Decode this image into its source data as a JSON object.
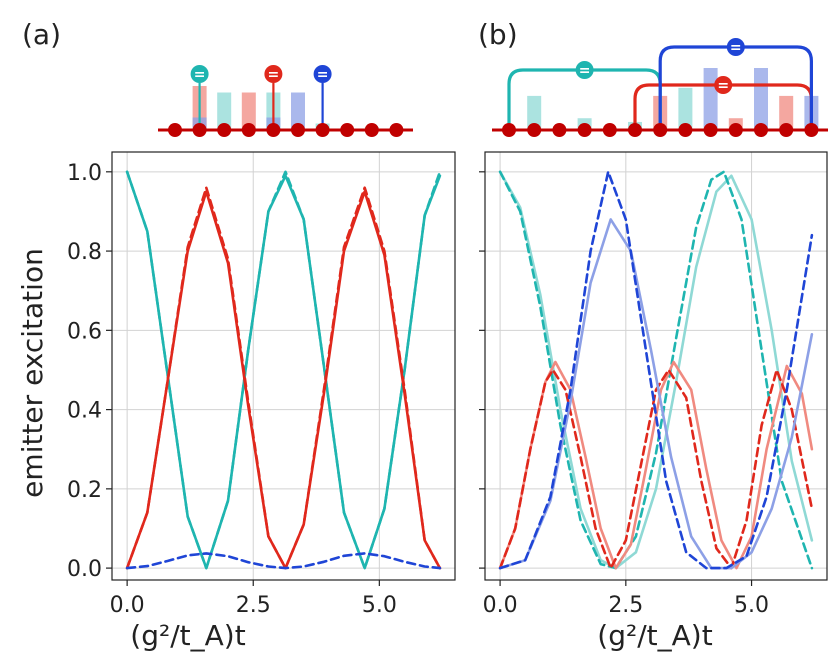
{
  "panel_labels": [
    "(a)",
    "(b)"
  ],
  "xlabel": "(g²/t_A)t",
  "ylabel": "emitter excitation",
  "colors": {
    "cyan": "#1fb5b0",
    "cyan_light": "#8fd9d5",
    "red": "#e0281c",
    "red_light": "#f08a80",
    "blue": "#1f45d6",
    "blue_light": "#8da0e6",
    "chain": "#c00000",
    "grid": "#d2d2d2"
  },
  "chart_data": [
    {
      "type": "line",
      "panel": "(a)",
      "xlim": [
        -0.3,
        6.5
      ],
      "ylim": [
        -0.03,
        1.05
      ],
      "xticks": [
        0.0,
        2.5,
        5.0
      ],
      "xtick_labels": [
        "0.0",
        "2.5",
        "5.0"
      ],
      "yticks": [
        0.0,
        0.2,
        0.4,
        0.6,
        0.8,
        1.0
      ],
      "ytick_labels": [
        "0.0",
        "0.2",
        "0.4",
        "0.6",
        "0.8",
        "1.0"
      ],
      "grid": true,
      "series": [
        {
          "name": "cyan emitter (exact)",
          "color": "#1fb5b0",
          "style": "solid",
          "x": [
            0,
            0.4,
            0.8,
            1.2,
            1.57,
            2.0,
            2.4,
            2.8,
            3.14,
            3.5,
            3.9,
            4.3,
            4.71,
            5.1,
            5.5,
            5.9,
            6.2
          ],
          "y": [
            1.0,
            0.85,
            0.49,
            0.13,
            0.0,
            0.17,
            0.55,
            0.9,
            0.99,
            0.88,
            0.51,
            0.14,
            0.0,
            0.15,
            0.5,
            0.89,
            0.99
          ]
        },
        {
          "name": "cyan emitter (effective)",
          "color": "#1fb5b0",
          "style": "dashed",
          "x": [
            0,
            0.4,
            0.8,
            1.2,
            1.57,
            2.0,
            2.4,
            2.8,
            3.14,
            3.5,
            3.9,
            4.3,
            4.71,
            5.1,
            5.5,
            5.9,
            6.2
          ],
          "y": [
            1.0,
            0.85,
            0.49,
            0.13,
            0.0,
            0.17,
            0.55,
            0.9,
            1.0,
            0.88,
            0.51,
            0.14,
            0.0,
            0.15,
            0.5,
            0.89,
            1.0
          ]
        },
        {
          "name": "red emitter (exact)",
          "color": "#e0281c",
          "style": "solid",
          "x": [
            0,
            0.4,
            0.8,
            1.2,
            1.57,
            2.0,
            2.4,
            2.8,
            3.14,
            3.5,
            3.9,
            4.3,
            4.71,
            5.1,
            5.5,
            5.9,
            6.2
          ],
          "y": [
            0.0,
            0.14,
            0.47,
            0.8,
            0.95,
            0.77,
            0.41,
            0.08,
            0.0,
            0.11,
            0.44,
            0.8,
            0.95,
            0.79,
            0.44,
            0.07,
            0.0
          ]
        },
        {
          "name": "red emitter (effective)",
          "color": "#e0281c",
          "style": "dashed",
          "x": [
            0,
            0.4,
            0.8,
            1.2,
            1.57,
            2.0,
            2.4,
            2.8,
            3.14,
            3.5,
            3.9,
            4.3,
            4.71,
            5.1,
            5.5,
            5.9,
            6.2
          ],
          "y": [
            0.0,
            0.14,
            0.47,
            0.81,
            0.96,
            0.78,
            0.42,
            0.08,
            0.0,
            0.11,
            0.45,
            0.81,
            0.96,
            0.8,
            0.45,
            0.07,
            0.0
          ]
        },
        {
          "name": "blue emitter (effective)",
          "color": "#1f45d6",
          "style": "dashed",
          "x": [
            0,
            0.4,
            0.8,
            1.2,
            1.57,
            2.0,
            2.4,
            2.8,
            3.14,
            3.5,
            3.9,
            4.3,
            4.71,
            5.1,
            5.5,
            5.9,
            6.2
          ],
          "y": [
            0.0,
            0.005,
            0.018,
            0.032,
            0.037,
            0.03,
            0.015,
            0.004,
            0.0,
            0.004,
            0.016,
            0.031,
            0.037,
            0.03,
            0.016,
            0.004,
            0.0
          ]
        }
      ]
    },
    {
      "type": "line",
      "panel": "(b)",
      "xlim": [
        -0.3,
        6.5
      ],
      "ylim": [
        -0.03,
        1.05
      ],
      "xticks": [
        0.0,
        2.5,
        5.0
      ],
      "xtick_labels": [
        "0.0",
        "2.5",
        "5.0"
      ],
      "yticks": [
        0.0,
        0.2,
        0.4,
        0.6,
        0.8,
        1.0
      ],
      "ytick_labels": [
        "",
        "",
        "",
        "",
        "",
        ""
      ],
      "grid": true,
      "series": [
        {
          "name": "cyan emitter (exact)",
          "color": "#8fd9d5",
          "style": "solid",
          "x": [
            0,
            0.4,
            0.8,
            1.2,
            1.6,
            2.0,
            2.3,
            2.7,
            3.1,
            3.5,
            3.9,
            4.3,
            4.6,
            5.0,
            5.4,
            5.8,
            6.2
          ],
          "y": [
            1.0,
            0.91,
            0.69,
            0.4,
            0.15,
            0.02,
            0.0,
            0.04,
            0.2,
            0.47,
            0.76,
            0.95,
            0.99,
            0.88,
            0.6,
            0.27,
            0.07
          ]
        },
        {
          "name": "cyan emitter (effective)",
          "color": "#1fb5b0",
          "style": "dashed",
          "x": [
            0,
            0.4,
            0.8,
            1.2,
            1.6,
            2.0,
            2.3,
            2.7,
            3.1,
            3.5,
            3.9,
            4.2,
            4.45,
            4.8,
            5.2,
            5.6,
            6.2
          ],
          "y": [
            1.0,
            0.9,
            0.66,
            0.36,
            0.12,
            0.01,
            0.0,
            0.08,
            0.29,
            0.58,
            0.86,
            0.98,
            1.0,
            0.88,
            0.55,
            0.22,
            0.0
          ]
        },
        {
          "name": "red emitter (exact)",
          "color": "#f08a80",
          "style": "solid",
          "x": [
            0,
            0.3,
            0.6,
            0.9,
            1.1,
            1.4,
            1.7,
            2.0,
            2.3,
            2.6,
            2.9,
            3.2,
            3.45,
            3.8,
            4.1,
            4.4,
            4.7,
            5.0,
            5.3,
            5.7,
            6.0,
            6.2
          ],
          "y": [
            0.0,
            0.1,
            0.3,
            0.47,
            0.52,
            0.45,
            0.28,
            0.1,
            0.0,
            0.06,
            0.25,
            0.45,
            0.52,
            0.45,
            0.25,
            0.07,
            0.0,
            0.08,
            0.3,
            0.51,
            0.44,
            0.3
          ]
        },
        {
          "name": "red emitter (effective)",
          "color": "#e0281c",
          "style": "dashed",
          "x": [
            0,
            0.3,
            0.6,
            0.9,
            1.05,
            1.3,
            1.6,
            1.9,
            2.2,
            2.5,
            2.8,
            3.1,
            3.35,
            3.7,
            4.0,
            4.3,
            4.6,
            4.9,
            5.2,
            5.5,
            5.8,
            6.2
          ],
          "y": [
            0.0,
            0.1,
            0.3,
            0.47,
            0.5,
            0.45,
            0.28,
            0.1,
            0.0,
            0.07,
            0.26,
            0.45,
            0.5,
            0.43,
            0.22,
            0.05,
            0.0,
            0.12,
            0.36,
            0.5,
            0.4,
            0.15
          ]
        },
        {
          "name": "blue emitter (exact)",
          "color": "#8da0e6",
          "style": "solid",
          "x": [
            0,
            0.5,
            1.0,
            1.4,
            1.8,
            2.2,
            2.6,
            3.0,
            3.4,
            3.8,
            4.2,
            4.6,
            5.0,
            5.4,
            5.8,
            6.2
          ],
          "y": [
            0.0,
            0.02,
            0.17,
            0.42,
            0.72,
            0.88,
            0.8,
            0.55,
            0.28,
            0.08,
            0.0,
            0.0,
            0.04,
            0.15,
            0.33,
            0.59
          ]
        },
        {
          "name": "blue emitter (effective)",
          "color": "#1f45d6",
          "style": "dashed",
          "x": [
            0,
            0.5,
            1.0,
            1.4,
            1.8,
            2.15,
            2.5,
            2.9,
            3.3,
            3.7,
            4.1,
            4.5,
            4.9,
            5.3,
            5.7,
            6.2
          ],
          "y": [
            0.0,
            0.02,
            0.18,
            0.45,
            0.8,
            1.0,
            0.88,
            0.55,
            0.22,
            0.04,
            0.0,
            0.0,
            0.03,
            0.18,
            0.45,
            0.84
          ]
        }
      ]
    }
  ],
  "schematic_a": {
    "site_count": 10,
    "bars": [
      {
        "site": 1,
        "color": "#f08a80",
        "value": 0.88
      },
      {
        "site": 2,
        "color": "#8fd9d5",
        "value": 0.75
      },
      {
        "site": 3,
        "color": "#f08a80",
        "value": 0.75
      },
      {
        "site": 4,
        "color": "#8fd9d5",
        "value": 0.75
      },
      {
        "site": 5,
        "color": "#8da0e6",
        "value": 0.75
      },
      {
        "site": 6,
        "color": "#8fd9d5",
        "value": 0.13
      },
      {
        "site": 8,
        "color": "#8fd9d5",
        "value": 0.06
      },
      {
        "site": 1,
        "color": "#8da0e6",
        "value": 0.25
      },
      {
        "site": 4,
        "color": "#8da0e6",
        "value": 0.25
      }
    ],
    "emitters": [
      {
        "site": 1,
        "color": "#1fb5b0",
        "label": "="
      },
      {
        "site": 4,
        "color": "#e0281c",
        "label": "="
      },
      {
        "site": 6,
        "color": "#1f45d6",
        "label": "="
      }
    ]
  },
  "schematic_b": {
    "site_count": 13,
    "bars": [
      {
        "site": 1,
        "color": "#8fd9d5",
        "value": 0.55
      },
      {
        "site": 3,
        "color": "#8fd9d5",
        "value": 0.19
      },
      {
        "site": 5,
        "color": "#8fd9d5",
        "value": 0.13
      },
      {
        "site": 6,
        "color": "#f08a80",
        "value": 0.55
      },
      {
        "site": 7,
        "color": "#8fd9d5",
        "value": 0.68
      },
      {
        "site": 8,
        "color": "#8da0e6",
        "value": 1.0
      },
      {
        "site": 9,
        "color": "#f08a80",
        "value": 0.19
      },
      {
        "site": 10,
        "color": "#8da0e6",
        "value": 1.0
      },
      {
        "site": 11,
        "color": "#f08a80",
        "value": 0.55
      },
      {
        "site": 12,
        "color": "#8da0e6",
        "value": 0.55
      }
    ],
    "giant_atoms": [
      {
        "color": "#1fb5b0",
        "legs": [
          0,
          6
        ],
        "label": "="
      },
      {
        "color": "#e0281c",
        "legs": [
          5,
          12
        ],
        "label": "="
      },
      {
        "color": "#1f45d6",
        "legs": [
          6,
          12
        ],
        "label": "="
      }
    ]
  }
}
